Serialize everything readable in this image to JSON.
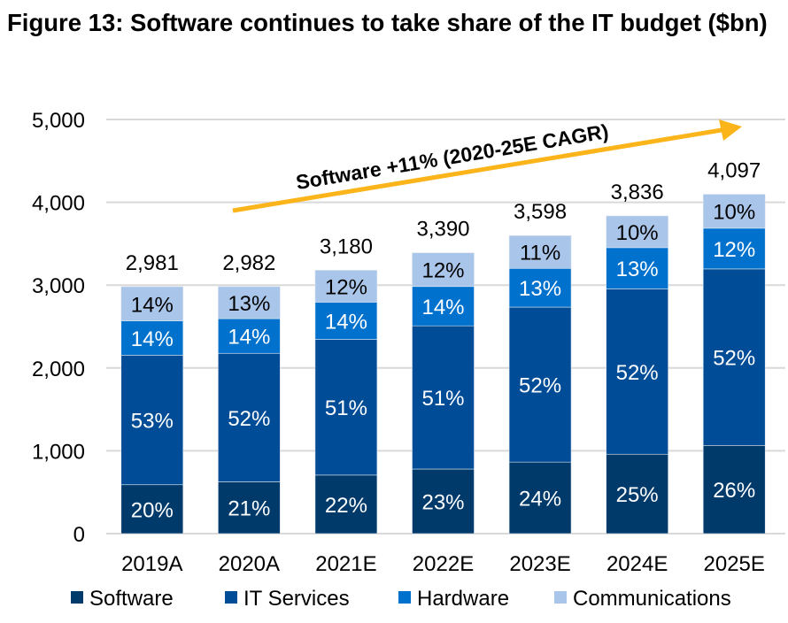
{
  "title": "Figure 13: Software continues to take share of the IT budget ($bn)",
  "chart_data": {
    "type": "bar",
    "stacked": true,
    "title": "Figure 13: Software continues to take share of the IT budget ($bn)",
    "xlabel": "",
    "ylabel": "",
    "ylim": [
      0,
      5000
    ],
    "yticks": [
      "0",
      "1,000",
      "2,000",
      "3,000",
      "4,000",
      "5,000"
    ],
    "grid": true,
    "legend_position": "bottom",
    "categories": [
      "2019A",
      "2020A",
      "2021E",
      "2022E",
      "2023E",
      "2024E",
      "2025E"
    ],
    "totals": [
      2981,
      2982,
      3180,
      3390,
      3598,
      3836,
      4097
    ],
    "total_labels": [
      "2,981",
      "2,982",
      "3,180",
      "3,390",
      "3,598",
      "3,836",
      "4,097"
    ],
    "series": [
      {
        "name": "Software",
        "color": "#003A6B",
        "label_color": "#ffffff",
        "share_pct": [
          20,
          21,
          22,
          23,
          24,
          25,
          26
        ]
      },
      {
        "name": "IT Services",
        "color": "#004C97",
        "label_color": "#ffffff",
        "share_pct": [
          53,
          52,
          51,
          51,
          52,
          52,
          52
        ]
      },
      {
        "name": "Hardware",
        "color": "#0072CE",
        "label_color": "#ffffff",
        "share_pct": [
          14,
          14,
          14,
          14,
          13,
          13,
          12
        ]
      },
      {
        "name": "Communications",
        "color": "#A9C6EA",
        "label_color": "#000000",
        "share_pct": [
          14,
          13,
          12,
          12,
          11,
          10,
          10
        ]
      }
    ],
    "annotation": {
      "text": "Software +11% (2020-25E CAGR)",
      "color": "#FBB41A"
    }
  }
}
